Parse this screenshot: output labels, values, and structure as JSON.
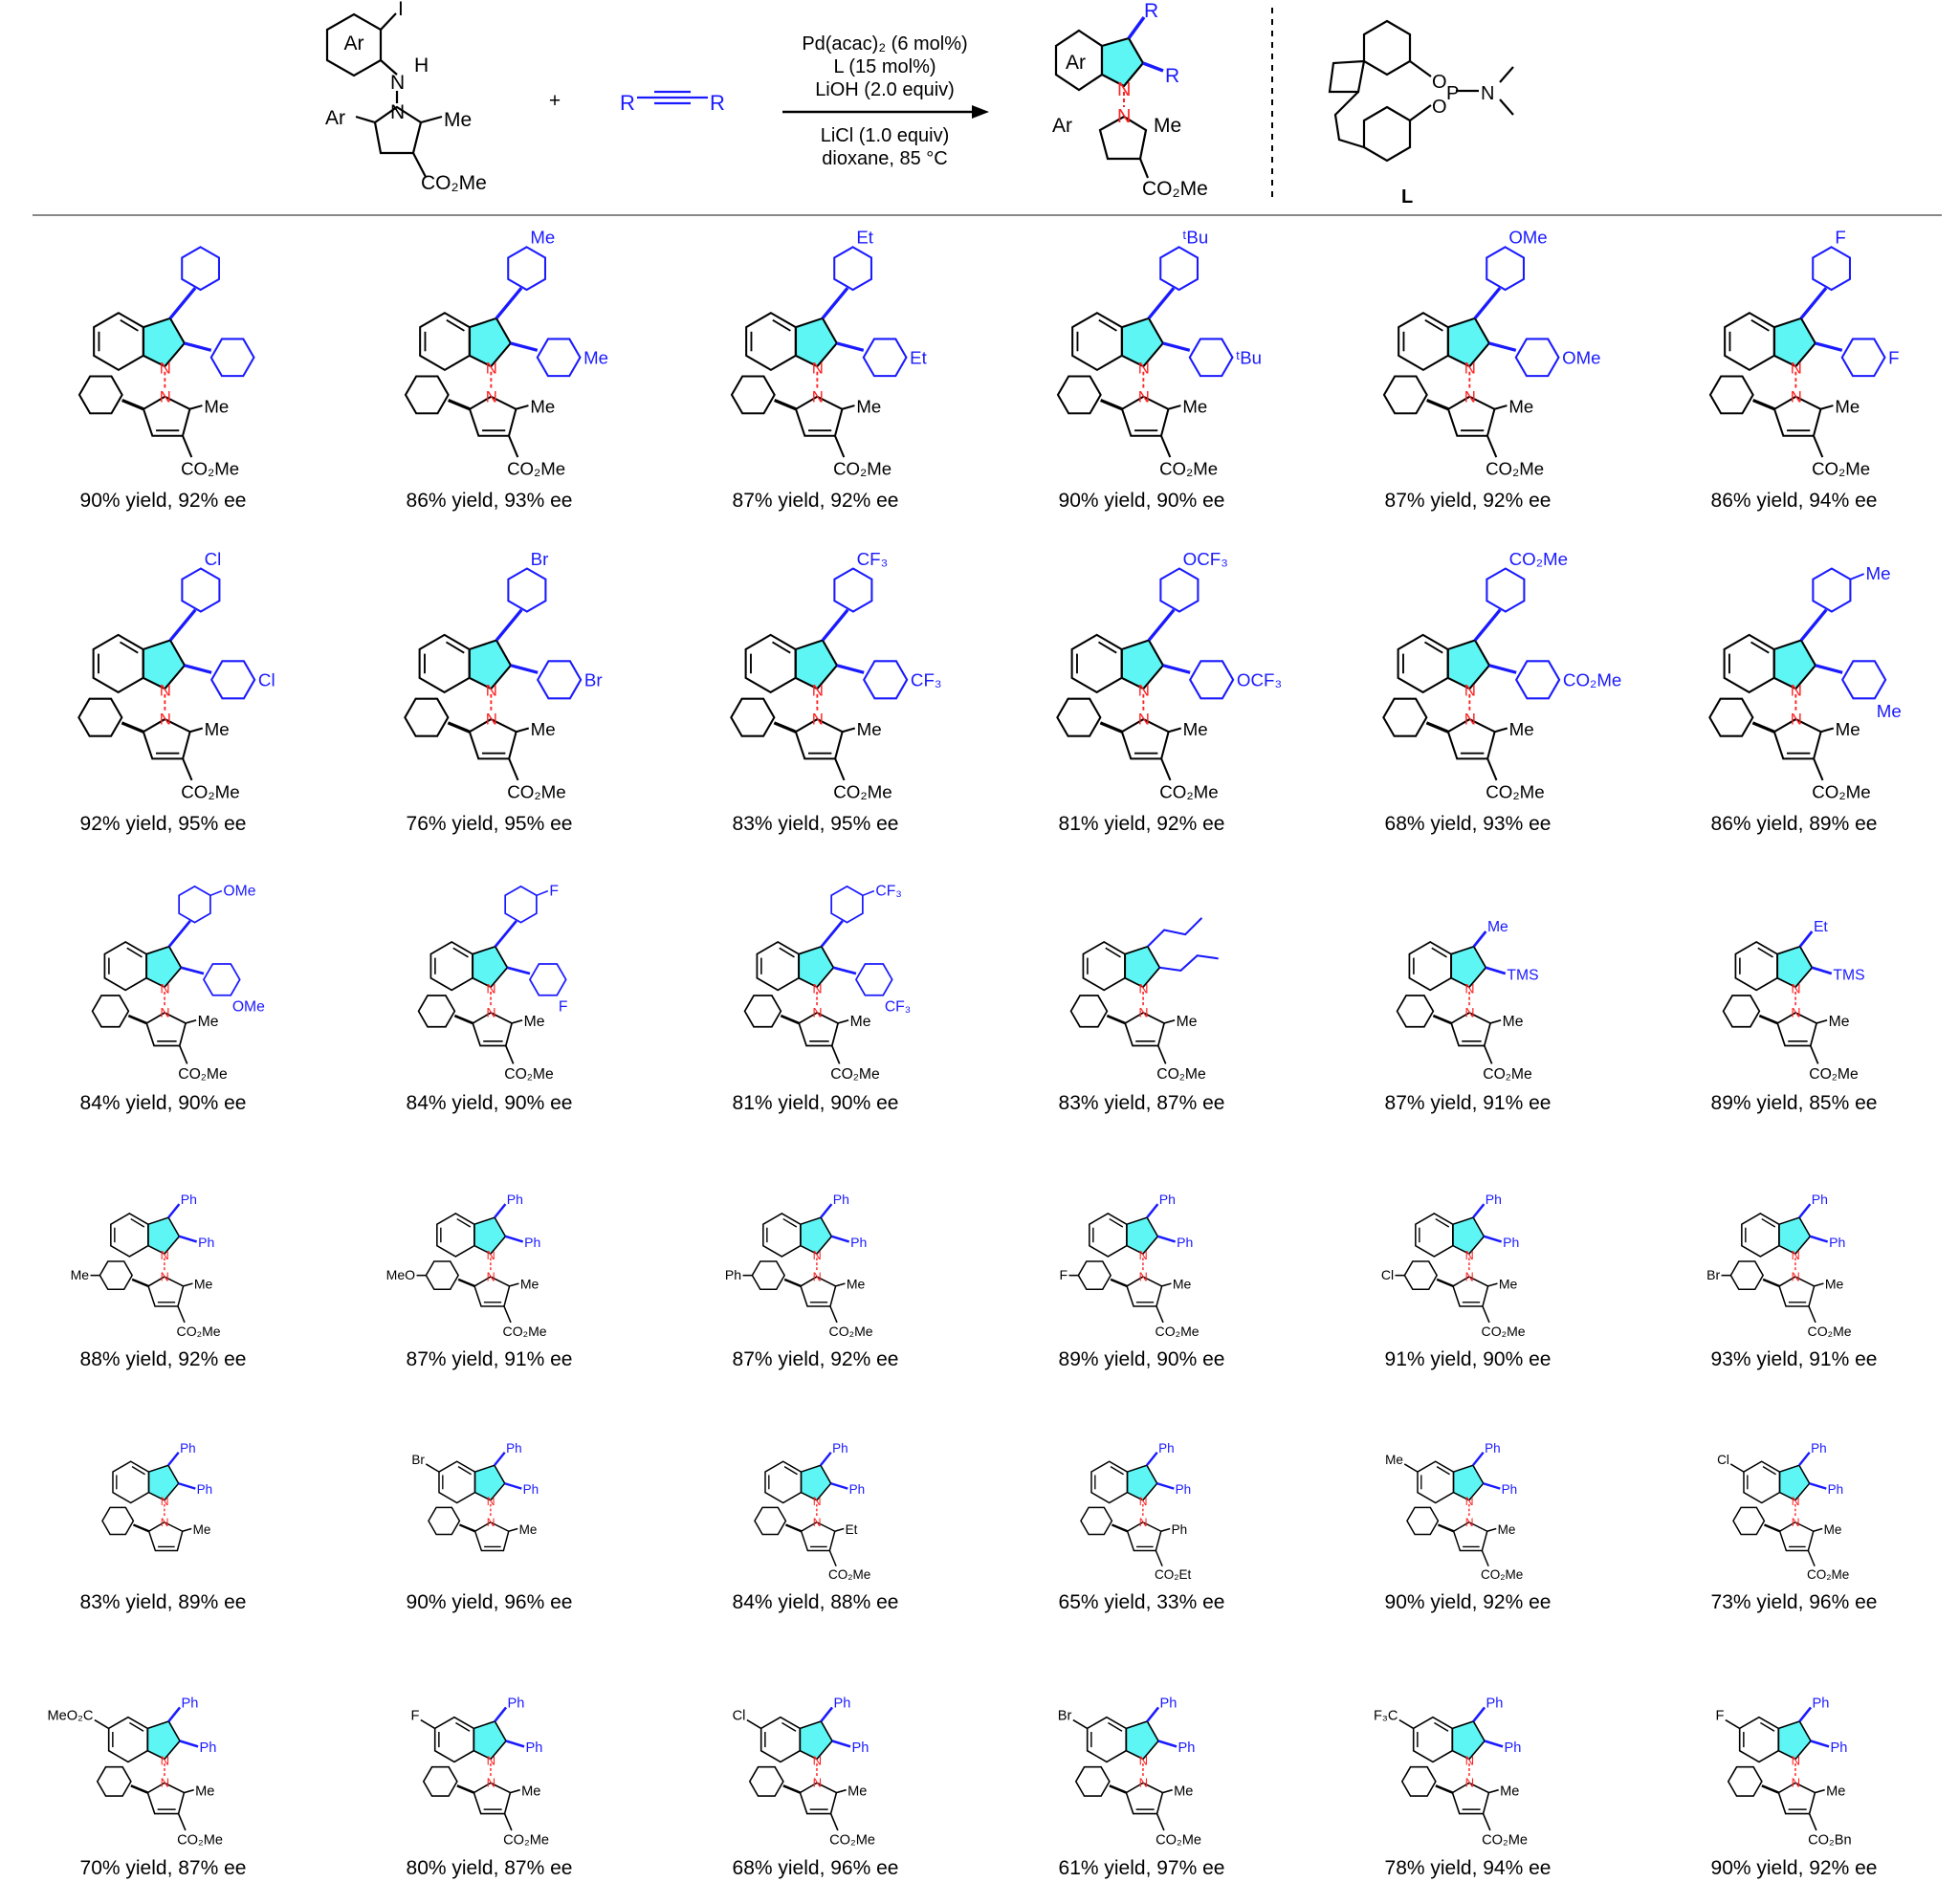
{
  "colors": {
    "substituent": "#1a1aff",
    "ring_fill": "#5ef5f5",
    "nn_bond": "#ff2020",
    "pyrrole_fill_header": "#dcdcdc"
  },
  "scheme": {
    "reactant": {
      "ring_label": "Ar",
      "iodo": "I",
      "n": "N",
      "h": "H",
      "n2": "N",
      "ar": "Ar",
      "me": "Me",
      "ester": "CO₂Me"
    },
    "plus": "+",
    "alkyne": {
      "left": "R",
      "right": "R"
    },
    "conditions": {
      "catalyst": "Pd(acac)₂ (6 mol%)",
      "ligand": "L (15 mol%)",
      "base": "LiOH (2.0 equiv)",
      "additive": "LiCl (1.0 equiv)",
      "solvent_temp": "dioxane, 85 °C"
    },
    "product": {
      "ring_label": "Ar",
      "r3": "R",
      "r2": "R",
      "n1": "N",
      "n2": "N",
      "ar": "Ar",
      "me": "Me",
      "ester": "CO₂Me"
    },
    "ligand": {
      "o1": "O",
      "o2": "O",
      "p": "P",
      "n": "N",
      "label": "L"
    }
  },
  "compounds": [
    {
      "r3": {
        "kind": "aryl",
        "sub": "",
        "pos": "para"
      },
      "r2": {
        "kind": "aryl",
        "sub": "",
        "pos": "para"
      },
      "ar_sub": "",
      "pyr2": "Me",
      "ester": "CO₂Me",
      "indole_sub": "",
      "result": "90% yield, 92% ee"
    },
    {
      "r3": {
        "kind": "aryl",
        "sub": "Me",
        "pos": "para"
      },
      "r2": {
        "kind": "aryl",
        "sub": "Me",
        "pos": "para"
      },
      "ar_sub": "",
      "pyr2": "Me",
      "ester": "CO₂Me",
      "indole_sub": "",
      "result": "86% yield, 93% ee"
    },
    {
      "r3": {
        "kind": "aryl",
        "sub": "Et",
        "pos": "para"
      },
      "r2": {
        "kind": "aryl",
        "sub": "Et",
        "pos": "para"
      },
      "ar_sub": "",
      "pyr2": "Me",
      "ester": "CO₂Me",
      "indole_sub": "",
      "result": "87% yield, 92% ee"
    },
    {
      "r3": {
        "kind": "aryl",
        "sub": "ᵗBu",
        "pos": "para"
      },
      "r2": {
        "kind": "aryl",
        "sub": "ᵗBu",
        "pos": "para"
      },
      "ar_sub": "",
      "pyr2": "Me",
      "ester": "CO₂Me",
      "indole_sub": "",
      "result": "90% yield, 90% ee"
    },
    {
      "r3": {
        "kind": "aryl",
        "sub": "OMe",
        "pos": "para"
      },
      "r2": {
        "kind": "aryl",
        "sub": "OMe",
        "pos": "para"
      },
      "ar_sub": "",
      "pyr2": "Me",
      "ester": "CO₂Me",
      "indole_sub": "",
      "result": "87% yield, 92% ee"
    },
    {
      "r3": {
        "kind": "aryl",
        "sub": "F",
        "pos": "para"
      },
      "r2": {
        "kind": "aryl",
        "sub": "F",
        "pos": "para"
      },
      "ar_sub": "",
      "pyr2": "Me",
      "ester": "CO₂Me",
      "indole_sub": "",
      "result": "86% yield, 94% ee"
    },
    {
      "r3": {
        "kind": "aryl",
        "sub": "Cl",
        "pos": "para"
      },
      "r2": {
        "kind": "aryl",
        "sub": "Cl",
        "pos": "para"
      },
      "ar_sub": "",
      "pyr2": "Me",
      "ester": "CO₂Me",
      "indole_sub": "",
      "result": "92% yield, 95% ee"
    },
    {
      "r3": {
        "kind": "aryl",
        "sub": "Br",
        "pos": "para"
      },
      "r2": {
        "kind": "aryl",
        "sub": "Br",
        "pos": "para"
      },
      "ar_sub": "",
      "pyr2": "Me",
      "ester": "CO₂Me",
      "indole_sub": "",
      "result": "76% yield, 95% ee"
    },
    {
      "r3": {
        "kind": "aryl",
        "sub": "CF₃",
        "pos": "para"
      },
      "r2": {
        "kind": "aryl",
        "sub": "CF₃",
        "pos": "para"
      },
      "ar_sub": "",
      "pyr2": "Me",
      "ester": "CO₂Me",
      "indole_sub": "",
      "result": "83% yield, 95% ee"
    },
    {
      "r3": {
        "kind": "aryl",
        "sub": "OCF₃",
        "pos": "para"
      },
      "r2": {
        "kind": "aryl",
        "sub": "OCF₃",
        "pos": "para"
      },
      "ar_sub": "",
      "pyr2": "Me",
      "ester": "CO₂Me",
      "indole_sub": "",
      "result": "81% yield, 92% ee"
    },
    {
      "r3": {
        "kind": "aryl",
        "sub": "CO₂Me",
        "pos": "para"
      },
      "r2": {
        "kind": "aryl",
        "sub": "CO₂Me",
        "pos": "para"
      },
      "ar_sub": "",
      "pyr2": "Me",
      "ester": "CO₂Me",
      "indole_sub": "",
      "result": "68% yield, 93% ee"
    },
    {
      "r3": {
        "kind": "aryl",
        "sub": "Me",
        "pos": "meta"
      },
      "r2": {
        "kind": "aryl",
        "sub": "Me",
        "pos": "meta"
      },
      "ar_sub": "",
      "pyr2": "Me",
      "ester": "CO₂Me",
      "indole_sub": "",
      "result": "86% yield, 89% ee"
    },
    {
      "r3": {
        "kind": "aryl",
        "sub": "OMe",
        "pos": "meta"
      },
      "r2": {
        "kind": "aryl",
        "sub": "OMe",
        "pos": "meta"
      },
      "ar_sub": "",
      "pyr2": "Me",
      "ester": "CO₂Me",
      "indole_sub": "",
      "result": "84% yield, 90% ee"
    },
    {
      "r3": {
        "kind": "aryl",
        "sub": "F",
        "pos": "meta"
      },
      "r2": {
        "kind": "aryl",
        "sub": "F",
        "pos": "meta"
      },
      "ar_sub": "",
      "pyr2": "Me",
      "ester": "CO₂Me",
      "indole_sub": "",
      "result": "84% yield, 90% ee"
    },
    {
      "r3": {
        "kind": "aryl",
        "sub": "CF₃",
        "pos": "meta"
      },
      "r2": {
        "kind": "aryl",
        "sub": "CF₃",
        "pos": "meta"
      },
      "ar_sub": "",
      "pyr2": "Me",
      "ester": "CO₂Me",
      "indole_sub": "",
      "result": "81% yield, 90% ee"
    },
    {
      "r3": {
        "kind": "propyl"
      },
      "r2": {
        "kind": "propyl"
      },
      "ar_sub": "",
      "pyr2": "Me",
      "ester": "CO₂Me",
      "indole_sub": "",
      "result": "83% yield, 87% ee"
    },
    {
      "r3": {
        "kind": "text",
        "label": "Me"
      },
      "r2": {
        "kind": "text",
        "label": "TMS"
      },
      "ar_sub": "",
      "pyr2": "Me",
      "ester": "CO₂Me",
      "indole_sub": "",
      "result": "87% yield, 91% ee"
    },
    {
      "r3": {
        "kind": "text",
        "label": "Et"
      },
      "r2": {
        "kind": "text",
        "label": "TMS"
      },
      "ar_sub": "",
      "pyr2": "Me",
      "ester": "CO₂Me",
      "indole_sub": "",
      "result": "89% yield, 85% ee"
    },
    {
      "r3": {
        "kind": "text",
        "label": "Ph"
      },
      "r2": {
        "kind": "text",
        "label": "Ph"
      },
      "ar_sub": "Me",
      "pyr2": "Me",
      "ester": "CO₂Me",
      "indole_sub": "",
      "result": "88% yield, 92% ee"
    },
    {
      "r3": {
        "kind": "text",
        "label": "Ph"
      },
      "r2": {
        "kind": "text",
        "label": "Ph"
      },
      "ar_sub": "MeO",
      "pyr2": "Me",
      "ester": "CO₂Me",
      "indole_sub": "",
      "result": "87% yield, 91% ee"
    },
    {
      "r3": {
        "kind": "text",
        "label": "Ph"
      },
      "r2": {
        "kind": "text",
        "label": "Ph"
      },
      "ar_sub": "Ph",
      "pyr2": "Me",
      "ester": "CO₂Me",
      "indole_sub": "",
      "result": "87% yield, 92% ee"
    },
    {
      "r3": {
        "kind": "text",
        "label": "Ph"
      },
      "r2": {
        "kind": "text",
        "label": "Ph"
      },
      "ar_sub": "F",
      "pyr2": "Me",
      "ester": "CO₂Me",
      "indole_sub": "",
      "result": "89% yield, 90% ee"
    },
    {
      "r3": {
        "kind": "text",
        "label": "Ph"
      },
      "r2": {
        "kind": "text",
        "label": "Ph"
      },
      "ar_sub": "Cl",
      "pyr2": "Me",
      "ester": "CO₂Me",
      "indole_sub": "",
      "result": "91% yield, 90% ee"
    },
    {
      "r3": {
        "kind": "text",
        "label": "Ph"
      },
      "r2": {
        "kind": "text",
        "label": "Ph"
      },
      "ar_sub": "Br",
      "pyr2": "Me",
      "ester": "CO₂Me",
      "indole_sub": "",
      "result": "93% yield, 91% ee"
    },
    {
      "r3": {
        "kind": "text",
        "label": "Ph"
      },
      "r2": {
        "kind": "text",
        "label": "Ph"
      },
      "ar_sub": "",
      "pyr2": "Me",
      "ester": "",
      "indole_sub": "",
      "result": "83% yield, 89% ee"
    },
    {
      "r3": {
        "kind": "text",
        "label": "Ph"
      },
      "r2": {
        "kind": "text",
        "label": "Ph"
      },
      "ar_sub": "",
      "pyr2": "Me",
      "ester": "",
      "indole_sub": "Br",
      "result": "90% yield, 96% ee"
    },
    {
      "r3": {
        "kind": "text",
        "label": "Ph"
      },
      "r2": {
        "kind": "text",
        "label": "Ph"
      },
      "ar_sub": "",
      "pyr2": "Et",
      "ester": "CO₂Me",
      "indole_sub": "",
      "result": "84% yield, 88% ee"
    },
    {
      "r3": {
        "kind": "text",
        "label": "Ph"
      },
      "r2": {
        "kind": "text",
        "label": "Ph"
      },
      "ar_sub": "",
      "pyr2": "Ph",
      "ester": "CO₂Et",
      "indole_sub": "",
      "result": "65% yield, 33% ee"
    },
    {
      "r3": {
        "kind": "text",
        "label": "Ph"
      },
      "r2": {
        "kind": "text",
        "label": "Ph"
      },
      "ar_sub": "",
      "pyr2": "Me",
      "ester": "CO₂Me",
      "indole_sub": "Me",
      "result": "90% yield, 92% ee"
    },
    {
      "r3": {
        "kind": "text",
        "label": "Ph"
      },
      "r2": {
        "kind": "text",
        "label": "Ph"
      },
      "ar_sub": "",
      "pyr2": "Me",
      "ester": "CO₂Me",
      "indole_sub": "Cl",
      "result": "73% yield, 96% ee"
    },
    {
      "r3": {
        "kind": "text",
        "label": "Ph"
      },
      "r2": {
        "kind": "text",
        "label": "Ph"
      },
      "ar_sub": "",
      "pyr2": "Me",
      "ester": "CO₂Me",
      "indole_sub": "MeO₂C",
      "result": "70% yield, 87% ee"
    },
    {
      "r3": {
        "kind": "text",
        "label": "Ph"
      },
      "r2": {
        "kind": "text",
        "label": "Ph"
      },
      "ar_sub": "",
      "pyr2": "Me",
      "ester": "CO₂Me",
      "indole_sub": "F",
      "result": "80% yield, 87% ee"
    },
    {
      "r3": {
        "kind": "text",
        "label": "Ph"
      },
      "r2": {
        "kind": "text",
        "label": "Ph"
      },
      "ar_sub": "",
      "pyr2": "Me",
      "ester": "CO₂Me",
      "indole_sub": "Cl",
      "result": "68% yield, 96% ee"
    },
    {
      "r3": {
        "kind": "text",
        "label": "Ph"
      },
      "r2": {
        "kind": "text",
        "label": "Ph"
      },
      "ar_sub": "",
      "pyr2": "Me",
      "ester": "CO₂Me",
      "indole_sub": "Br",
      "result": "61% yield, 97% ee"
    },
    {
      "r3": {
        "kind": "text",
        "label": "Ph"
      },
      "r2": {
        "kind": "text",
        "label": "Ph"
      },
      "ar_sub": "",
      "pyr2": "Me",
      "ester": "CO₂Me",
      "indole_sub": "F₃C",
      "result": "78% yield, 94% ee"
    },
    {
      "r3": {
        "kind": "text",
        "label": "Ph"
      },
      "r2": {
        "kind": "text",
        "label": "Ph"
      },
      "ar_sub": "",
      "pyr2": "Me",
      "ester": "CO₂Bn",
      "indole_sub": "F",
      "result": "90% yield, 92% ee"
    }
  ]
}
